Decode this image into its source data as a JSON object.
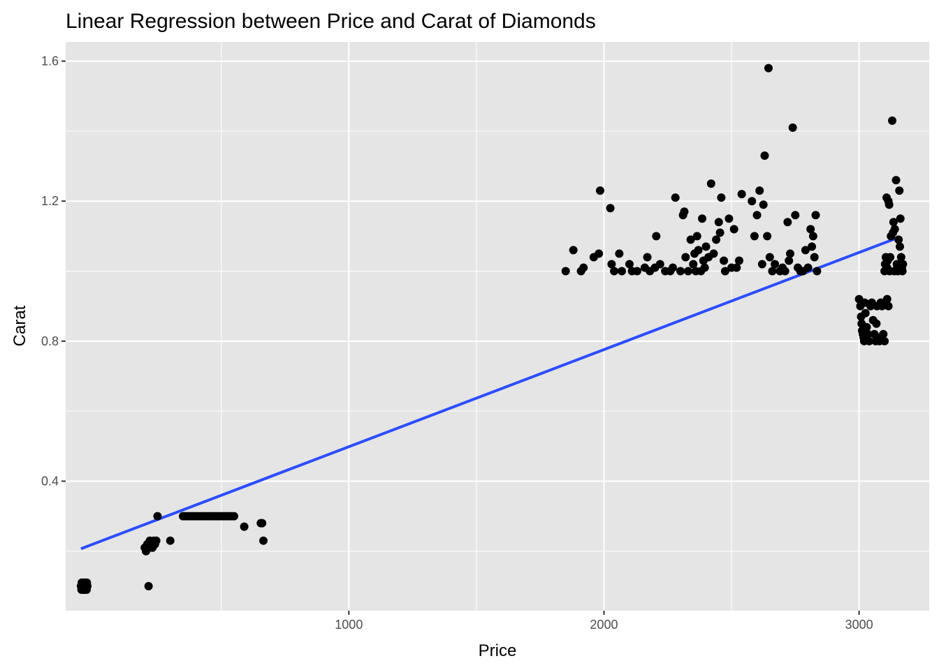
{
  "chart_data": {
    "type": "scatter",
    "title": "Linear Regression between Price and Carat of Diamonds",
    "xlabel": "Price",
    "ylabel": "Carat",
    "xlim": [
      -110,
      3275
    ],
    "ylim": [
      0.03,
      1.655
    ],
    "x_ticks": [
      1000,
      2000,
      3000
    ],
    "x_tick_labels": [
      "1000",
      "2000",
      "3000"
    ],
    "y_ticks": [
      0.4,
      0.8,
      1.2,
      1.6
    ],
    "y_tick_labels": [
      "0.4",
      "0.8",
      "1.2",
      "1.6"
    ],
    "grid": true,
    "colors": {
      "panel": "#e5e5e5",
      "grid": "#ffffff",
      "points": "#000000",
      "fit_line": "#2c4dff"
    },
    "series": [
      {
        "type": "scatter",
        "points": [
          [
            -50,
            0.1
          ],
          [
            -48,
            0.09
          ],
          [
            -47,
            0.11
          ],
          [
            -45,
            0.1
          ],
          [
            -43,
            0.09
          ],
          [
            -42,
            0.11
          ],
          [
            -40,
            0.1
          ],
          [
            -38,
            0.09
          ],
          [
            -37,
            0.11
          ],
          [
            -35,
            0.1
          ],
          [
            -33,
            0.09
          ],
          [
            -32,
            0.11
          ],
          [
            -30,
            0.1
          ],
          [
            -28,
            0.09
          ],
          [
            -27,
            0.11
          ],
          [
            -25,
            0.1
          ],
          [
            -47,
            0.1
          ],
          [
            -41,
            0.09
          ],
          [
            -36,
            0.1
          ],
          [
            -31,
            0.1
          ],
          [
            200,
            0.21
          ],
          [
            205,
            0.2
          ],
          [
            210,
            0.22
          ],
          [
            215,
            0.21
          ],
          [
            220,
            0.23
          ],
          [
            225,
            0.22
          ],
          [
            230,
            0.21
          ],
          [
            235,
            0.23
          ],
          [
            240,
            0.22
          ],
          [
            245,
            0.23
          ],
          [
            250,
            0.3
          ],
          [
            215,
            0.1
          ],
          [
            300,
            0.23
          ],
          [
            350,
            0.3
          ],
          [
            360,
            0.3
          ],
          [
            370,
            0.3
          ],
          [
            380,
            0.3
          ],
          [
            390,
            0.3
          ],
          [
            400,
            0.3
          ],
          [
            410,
            0.3
          ],
          [
            420,
            0.3
          ],
          [
            430,
            0.3
          ],
          [
            440,
            0.3
          ],
          [
            450,
            0.3
          ],
          [
            460,
            0.3
          ],
          [
            470,
            0.3
          ],
          [
            480,
            0.3
          ],
          [
            490,
            0.3
          ],
          [
            500,
            0.3
          ],
          [
            510,
            0.3
          ],
          [
            520,
            0.3
          ],
          [
            530,
            0.3
          ],
          [
            540,
            0.3
          ],
          [
            550,
            0.3
          ],
          [
            590,
            0.27
          ],
          [
            655,
            0.28
          ],
          [
            660,
            0.28
          ],
          [
            665,
            0.23
          ],
          [
            1850,
            1.0
          ],
          [
            1880,
            1.06
          ],
          [
            1910,
            1.0
          ],
          [
            1920,
            1.01
          ],
          [
            1960,
            1.04
          ],
          [
            1980,
            1.05
          ],
          [
            1985,
            1.23
          ],
          [
            2025,
            1.18
          ],
          [
            2030,
            1.02
          ],
          [
            2040,
            1.0
          ],
          [
            2060,
            1.05
          ],
          [
            2070,
            1.0
          ],
          [
            2100,
            1.02
          ],
          [
            2110,
            1.0
          ],
          [
            2130,
            1.0
          ],
          [
            2160,
            1.01
          ],
          [
            2170,
            1.04
          ],
          [
            2180,
            1.0
          ],
          [
            2200,
            1.01
          ],
          [
            2205,
            1.1
          ],
          [
            2220,
            1.02
          ],
          [
            2240,
            1.0
          ],
          [
            2260,
            1.0
          ],
          [
            2270,
            1.01
          ],
          [
            2280,
            1.21
          ],
          [
            2300,
            1.0
          ],
          [
            2310,
            1.16
          ],
          [
            2315,
            1.17
          ],
          [
            2320,
            1.04
          ],
          [
            2330,
            1.0
          ],
          [
            2340,
            1.09
          ],
          [
            2350,
            1.02
          ],
          [
            2355,
            1.05
          ],
          [
            2360,
            1.0
          ],
          [
            2365,
            1.1
          ],
          [
            2370,
            1.06
          ],
          [
            2380,
            1.0
          ],
          [
            2385,
            1.15
          ],
          [
            2390,
            1.03
          ],
          [
            2395,
            1.01
          ],
          [
            2400,
            1.07
          ],
          [
            2410,
            1.04
          ],
          [
            2420,
            1.25
          ],
          [
            2430,
            1.05
          ],
          [
            2440,
            1.09
          ],
          [
            2450,
            1.14
          ],
          [
            2455,
            1.11
          ],
          [
            2460,
            1.21
          ],
          [
            2470,
            1.03
          ],
          [
            2475,
            1.0
          ],
          [
            2490,
            1.15
          ],
          [
            2500,
            1.01
          ],
          [
            2510,
            1.12
          ],
          [
            2520,
            1.01
          ],
          [
            2530,
            1.03
          ],
          [
            2540,
            1.22
          ],
          [
            2580,
            1.2
          ],
          [
            2590,
            1.1
          ],
          [
            2600,
            1.16
          ],
          [
            2610,
            1.23
          ],
          [
            2620,
            1.02
          ],
          [
            2625,
            1.19
          ],
          [
            2630,
            1.33
          ],
          [
            2640,
            1.1
          ],
          [
            2645,
            1.58
          ],
          [
            2650,
            1.04
          ],
          [
            2660,
            1.0
          ],
          [
            2670,
            1.02
          ],
          [
            2690,
            1.0
          ],
          [
            2700,
            1.01
          ],
          [
            2710,
            1.0
          ],
          [
            2720,
            1.14
          ],
          [
            2725,
            1.03
          ],
          [
            2730,
            1.05
          ],
          [
            2740,
            1.41
          ],
          [
            2750,
            1.16
          ],
          [
            2760,
            1.01
          ],
          [
            2770,
            1.0
          ],
          [
            2780,
            1.0
          ],
          [
            2790,
            1.06
          ],
          [
            2800,
            1.01
          ],
          [
            2810,
            1.12
          ],
          [
            2815,
            1.07
          ],
          [
            2820,
            1.1
          ],
          [
            2825,
            1.04
          ],
          [
            2830,
            1.16
          ],
          [
            2835,
            1.0
          ],
          [
            3000,
            0.92
          ],
          [
            3005,
            0.9
          ],
          [
            3008,
            0.87
          ],
          [
            3010,
            0.85
          ],
          [
            3012,
            0.83
          ],
          [
            3015,
            0.82
          ],
          [
            3018,
            0.81
          ],
          [
            3020,
            0.8
          ],
          [
            3022,
            0.91
          ],
          [
            3025,
            0.88
          ],
          [
            3030,
            0.84
          ],
          [
            3035,
            0.82
          ],
          [
            3040,
            0.8
          ],
          [
            3045,
            0.9
          ],
          [
            3050,
            0.91
          ],
          [
            3055,
            0.86
          ],
          [
            3060,
            0.82
          ],
          [
            3065,
            0.8
          ],
          [
            3068,
            0.85
          ],
          [
            3070,
            0.9
          ],
          [
            3075,
            0.81
          ],
          [
            3080,
            0.8
          ],
          [
            3085,
            0.91
          ],
          [
            3090,
            0.9
          ],
          [
            3095,
            0.82
          ],
          [
            3100,
            0.8
          ],
          [
            3105,
            0.91
          ],
          [
            3110,
            0.92
          ],
          [
            3115,
            0.9
          ],
          [
            3100,
            1.0
          ],
          [
            3102,
            1.02
          ],
          [
            3105,
            1.04
          ],
          [
            3108,
            1.21
          ],
          [
            3110,
            1.01
          ],
          [
            3112,
            1.03
          ],
          [
            3115,
            1.2
          ],
          [
            3118,
            1.19
          ],
          [
            3120,
            1.0
          ],
          [
            3122,
            1.04
          ],
          [
            3125,
            1.1
          ],
          [
            3130,
            1.43
          ],
          [
            3133,
            1.11
          ],
          [
            3135,
            1.14
          ],
          [
            3138,
            1.0
          ],
          [
            3140,
            1.12
          ],
          [
            3145,
            1.26
          ],
          [
            3148,
            1.02
          ],
          [
            3150,
            1.01
          ],
          [
            3152,
            1.0
          ],
          [
            3155,
            1.09
          ],
          [
            3158,
            1.23
          ],
          [
            3160,
            1.07
          ],
          [
            3162,
            1.15
          ],
          [
            3165,
            1.04
          ],
          [
            3168,
            1.01
          ],
          [
            3170,
            1.0
          ],
          [
            3172,
            1.02
          ]
        ]
      },
      {
        "type": "line",
        "points": [
          [
            -50,
            0.207
          ],
          [
            3150,
            1.095
          ]
        ]
      }
    ]
  }
}
